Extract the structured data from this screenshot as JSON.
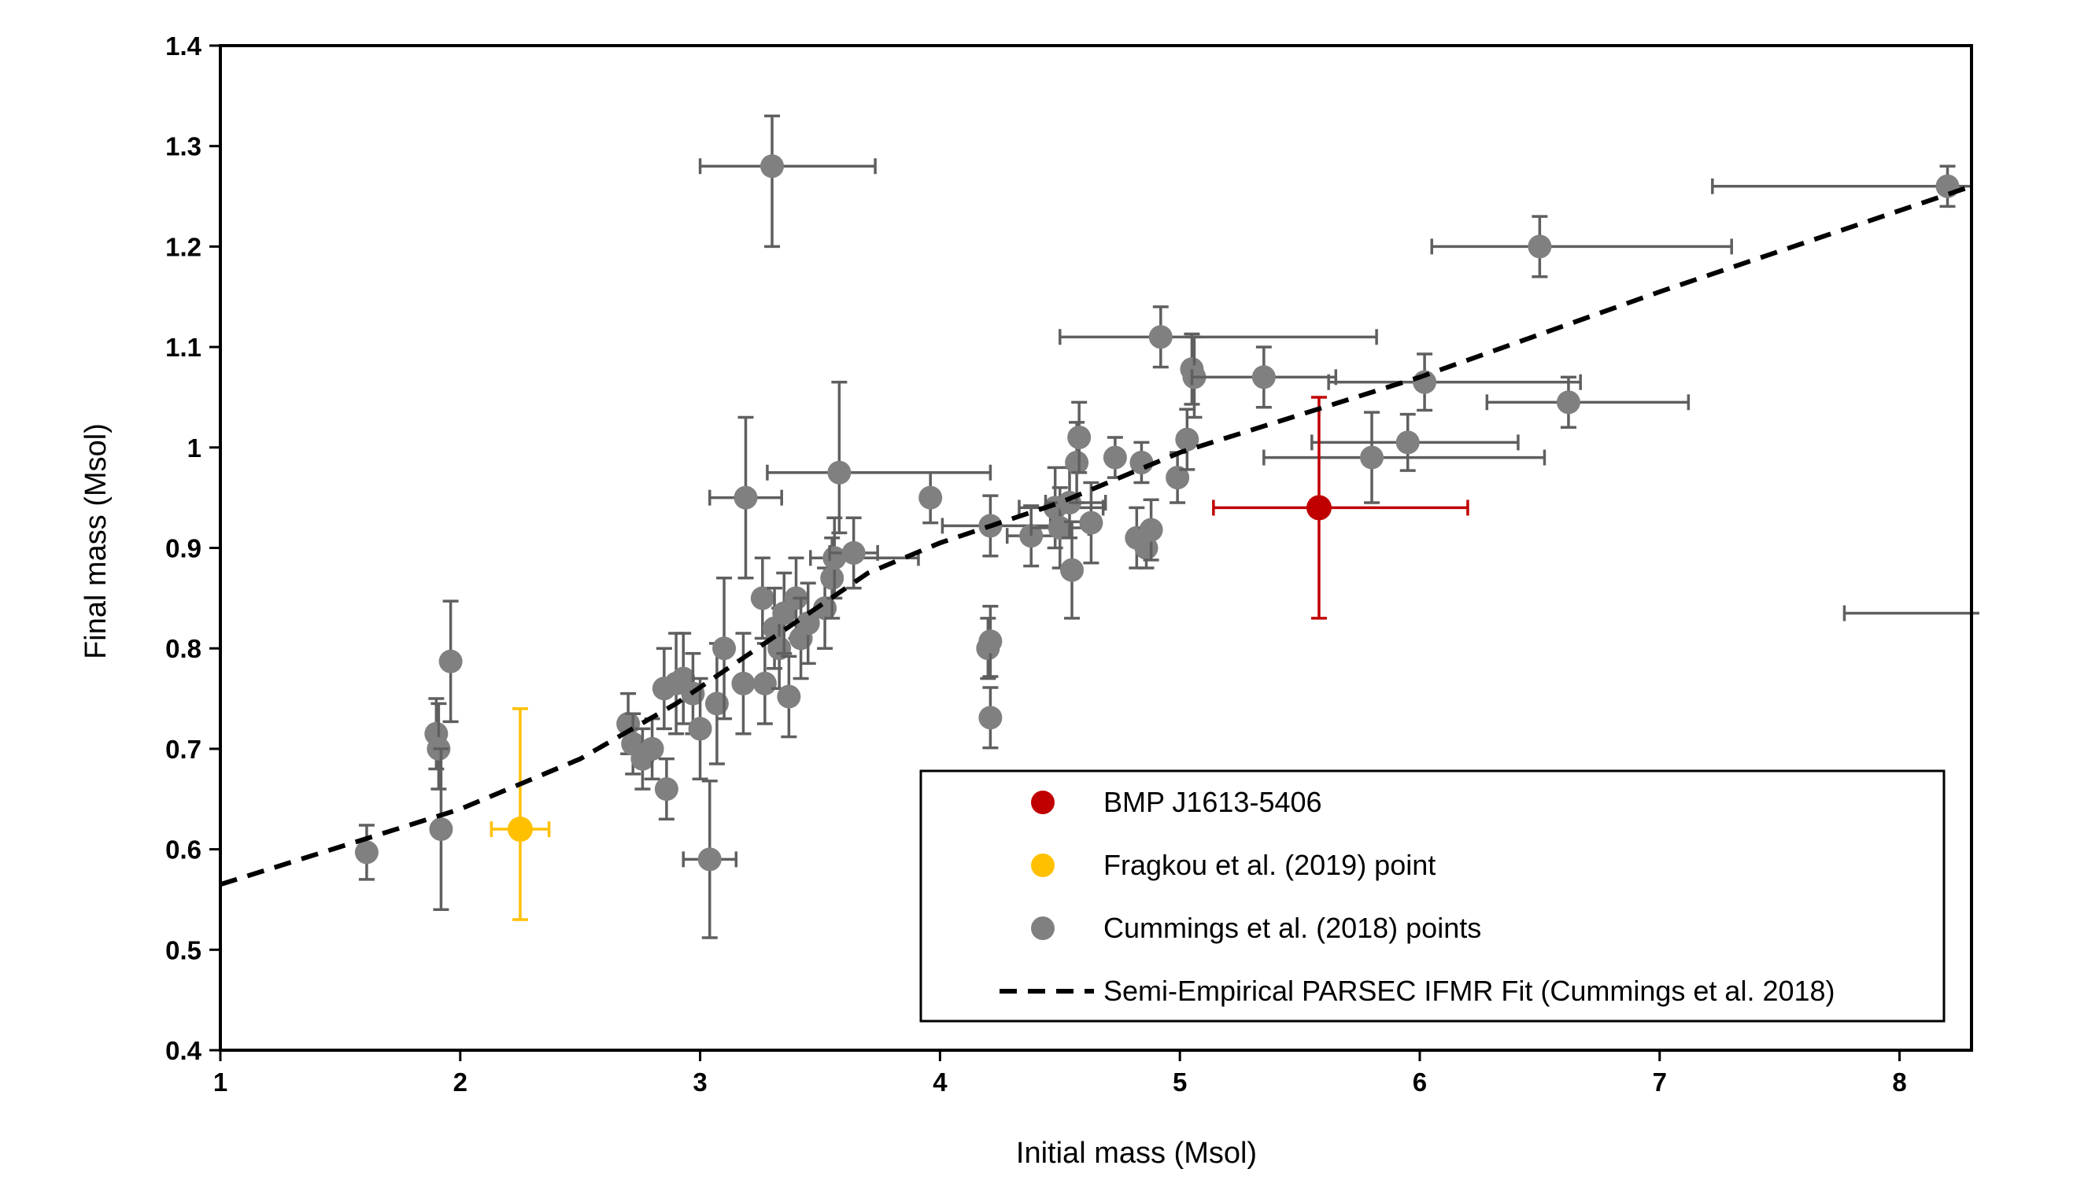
{
  "chart_data": {
    "type": "scatter",
    "xlabel": "Initial mass (Msol)",
    "ylabel": "Final mass (Msol)",
    "xlim": [
      1,
      8.3
    ],
    "ylim": [
      0.4,
      1.4
    ],
    "xticks": [
      "1",
      "2",
      "3",
      "4",
      "5",
      "6",
      "7",
      "8"
    ],
    "yticks": [
      "0.4",
      "0.5",
      "0.6",
      "0.7",
      "0.8",
      "0.9",
      "1",
      "1.1",
      "1.2",
      "1.3",
      "1.4"
    ],
    "legend_position": "bottom-right",
    "grid": false,
    "series": [
      {
        "name": "BMP J1613-5406",
        "kind": "points",
        "color": "#c00000",
        "points": [
          {
            "x": 5.58,
            "y": 0.94,
            "xerr": [
              0.44,
              0.62
            ],
            "yerr": [
              0.11,
              0.11
            ]
          }
        ]
      },
      {
        "name": "Fragkou et al. (2019) point",
        "kind": "points",
        "color": "#ffc000",
        "points": [
          {
            "x": 2.25,
            "y": 0.62,
            "xerr": [
              0.12,
              0.12
            ],
            "yerr": [
              0.09,
              0.12
            ]
          }
        ]
      },
      {
        "name": "Cummings et al. (2018) points",
        "kind": "points",
        "color": "#808080",
        "points": [
          {
            "x": 1.61,
            "y": 0.597,
            "yerr": [
              0.027,
              0.027
            ]
          },
          {
            "x": 1.9,
            "y": 0.715,
            "yerr": [
              0.035,
              0.035
            ]
          },
          {
            "x": 1.91,
            "y": 0.7,
            "yerr": [
              0.04,
              0.045
            ]
          },
          {
            "x": 1.92,
            "y": 0.62,
            "yerr": [
              0.08,
              0.08
            ]
          },
          {
            "x": 1.96,
            "y": 0.787,
            "yerr": [
              0.06,
              0.06
            ]
          },
          {
            "x": 3.3,
            "y": 1.28,
            "xerr": [
              0.3,
              0.43
            ],
            "yerr": [
              0.08,
              0.05
            ]
          },
          {
            "x": 3.04,
            "y": 0.59,
            "xerr": [
              0.11,
              0.11
            ],
            "yerr": [
              0.078,
              0.078
            ]
          },
          {
            "x": 3.19,
            "y": 0.95,
            "xerr": [
              0.15,
              0.15
            ],
            "yerr": [
              0.08,
              0.08
            ]
          },
          {
            "x": 3.58,
            "y": 0.975,
            "xerr": [
              0.3,
              0.63
            ],
            "yerr": [
              0.06,
              0.09
            ]
          },
          {
            "x": 2.7,
            "y": 0.725,
            "yerr": [
              0.03,
              0.03
            ]
          },
          {
            "x": 2.72,
            "y": 0.705,
            "yerr": [
              0.03,
              0.03
            ]
          },
          {
            "x": 2.76,
            "y": 0.69,
            "yerr": [
              0.03,
              0.03
            ]
          },
          {
            "x": 2.8,
            "y": 0.7,
            "yerr": [
              0.03,
              0.03
            ]
          },
          {
            "x": 2.86,
            "y": 0.66,
            "yerr": [
              0.03,
              0.03
            ]
          },
          {
            "x": 2.85,
            "y": 0.76,
            "yerr": [
              0.04,
              0.04
            ]
          },
          {
            "x": 2.9,
            "y": 0.765,
            "yerr": [
              0.05,
              0.05
            ]
          },
          {
            "x": 2.93,
            "y": 0.77,
            "yerr": [
              0.045,
              0.045
            ]
          },
          {
            "x": 2.97,
            "y": 0.755,
            "yerr": [
              0.04,
              0.04
            ]
          },
          {
            "x": 3.0,
            "y": 0.72,
            "yerr": [
              0.05,
              0.05
            ]
          },
          {
            "x": 3.07,
            "y": 0.745,
            "yerr": [
              0.06,
              0.06
            ]
          },
          {
            "x": 3.1,
            "y": 0.8,
            "yerr": [
              0.07,
              0.07
            ]
          },
          {
            "x": 3.18,
            "y": 0.765,
            "yerr": [
              0.05,
              0.05
            ]
          },
          {
            "x": 3.26,
            "y": 0.85,
            "yerr": [
              0.04,
              0.04
            ]
          },
          {
            "x": 3.27,
            "y": 0.765,
            "yerr": [
              0.04,
              0.04
            ]
          },
          {
            "x": 3.31,
            "y": 0.82,
            "yerr": [
              0.04,
              0.04
            ]
          },
          {
            "x": 3.33,
            "y": 0.8,
            "yerr": [
              0.04,
              0.04
            ]
          },
          {
            "x": 3.35,
            "y": 0.835,
            "yerr": [
              0.04,
              0.04
            ]
          },
          {
            "x": 3.37,
            "y": 0.752,
            "yerr": [
              0.04,
              0.04
            ]
          },
          {
            "x": 3.4,
            "y": 0.85,
            "yerr": [
              0.04,
              0.04
            ]
          },
          {
            "x": 3.42,
            "y": 0.81,
            "yerr": [
              0.04,
              0.04
            ]
          },
          {
            "x": 3.45,
            "y": 0.825,
            "yerr": [
              0.04,
              0.04
            ]
          },
          {
            "x": 3.52,
            "y": 0.84,
            "yerr": [
              0.04,
              0.04
            ]
          },
          {
            "x": 3.55,
            "y": 0.87,
            "yerr": [
              0.04,
              0.04
            ]
          },
          {
            "x": 3.56,
            "y": 0.89,
            "xerr": [
              0.1,
              0.35
            ],
            "yerr": [
              0.04,
              0.04
            ]
          },
          {
            "x": 3.64,
            "y": 0.895,
            "xerr": [
              0.1,
              0.1
            ],
            "yerr": [
              0.035,
              0.035
            ]
          },
          {
            "x": 3.96,
            "y": 0.95,
            "yerr": [
              0.025,
              0.025
            ]
          },
          {
            "x": 4.2,
            "y": 0.8,
            "yerr": [
              0.03,
              0.03
            ]
          },
          {
            "x": 4.21,
            "y": 0.807,
            "yerr": [
              0.035,
              0.035
            ]
          },
          {
            "x": 4.21,
            "y": 0.731,
            "yerr": [
              0.03,
              0.03
            ]
          },
          {
            "x": 4.21,
            "y": 0.922,
            "xerr": [
              0.2,
              0.25
            ],
            "yerr": [
              0.03,
              0.03
            ]
          },
          {
            "x": 4.38,
            "y": 0.912,
            "xerr": [
              0.1,
              0.1
            ],
            "yerr": [
              0.03,
              0.03
            ]
          },
          {
            "x": 4.48,
            "y": 0.94,
            "xerr": [
              0.15,
              0.2
            ],
            "yerr": [
              0.04,
              0.04
            ]
          },
          {
            "x": 4.5,
            "y": 0.92,
            "xerr": [
              0.12,
              0.12
            ],
            "yerr": [
              0.04,
              0.04
            ]
          },
          {
            "x": 4.54,
            "y": 0.945,
            "xerr": [
              0.1,
              0.15
            ],
            "yerr": [
              0.035,
              0.035
            ]
          },
          {
            "x": 4.55,
            "y": 0.878,
            "yerr": [
              0.048,
              0.048
            ]
          },
          {
            "x": 4.57,
            "y": 0.985,
            "yerr": [
              0.04,
              0.04
            ]
          },
          {
            "x": 4.58,
            "y": 1.01,
            "yerr": [
              0.035,
              0.035
            ]
          },
          {
            "x": 4.63,
            "y": 0.925,
            "yerr": [
              0.04,
              0.04
            ]
          },
          {
            "x": 4.73,
            "y": 0.99,
            "yerr": [
              0.02,
              0.02
            ]
          },
          {
            "x": 4.82,
            "y": 0.91,
            "yerr": [
              0.03,
              0.03
            ]
          },
          {
            "x": 4.84,
            "y": 0.985,
            "yerr": [
              0.02,
              0.02
            ]
          },
          {
            "x": 4.86,
            "y": 0.9,
            "yerr": [
              0.02,
              0.02
            ]
          },
          {
            "x": 4.88,
            "y": 0.918,
            "yerr": [
              0.03,
              0.03
            ]
          },
          {
            "x": 4.92,
            "y": 1.11,
            "xerr": [
              0.42,
              0.9
            ],
            "yerr": [
              0.03,
              0.03
            ]
          },
          {
            "x": 4.99,
            "y": 0.97,
            "yerr": [
              0.025,
              0.025
            ]
          },
          {
            "x": 5.03,
            "y": 1.008,
            "yerr": [
              0.03,
              0.03
            ]
          },
          {
            "x": 5.05,
            "y": 1.078,
            "yerr": [
              0.035,
              0.035
            ]
          },
          {
            "x": 5.06,
            "y": 1.07,
            "yerr": [
              0.04,
              0.04
            ]
          },
          {
            "x": 5.35,
            "y": 1.07,
            "xerr": [
              0.3,
              0.3
            ],
            "yerr": [
              0.03,
              0.03
            ]
          },
          {
            "x": 5.8,
            "y": 0.99,
            "xerr": [
              0.45,
              0.72
            ],
            "yerr": [
              0.045,
              0.045
            ]
          },
          {
            "x": 5.95,
            "y": 1.005,
            "xerr": [
              0.4,
              0.46
            ],
            "yerr": [
              0.028,
              0.028
            ]
          },
          {
            "x": 6.02,
            "y": 1.065,
            "xerr": [
              0.4,
              0.65
            ],
            "yerr": [
              0.028,
              0.028
            ]
          },
          {
            "x": 6.5,
            "y": 1.2,
            "xerr": [
              0.45,
              0.8
            ],
            "yerr": [
              0.03,
              0.03
            ]
          },
          {
            "x": 6.62,
            "y": 1.045,
            "xerr": [
              0.34,
              0.5
            ],
            "yerr": [
              0.025,
              0.025
            ]
          },
          {
            "x": 8.2,
            "y": 1.26,
            "xerr": [
              0.98,
              0.1
            ],
            "yerr": [
              0.02,
              0.02
            ]
          },
          {
            "x": 8.6,
            "y": 0.835,
            "xerr": [
              0.83,
              0.1
            ],
            "yerr": [
              0,
              0
            ]
          }
        ]
      },
      {
        "name": "Semi-Empirical PARSEC IFMR Fit (Cummings et al. 2018)",
        "kind": "line",
        "style": "dashed",
        "color": "#000000",
        "points": [
          {
            "x": 1.0,
            "y": 0.565
          },
          {
            "x": 2.0,
            "y": 0.64
          },
          {
            "x": 2.5,
            "y": 0.69
          },
          {
            "x": 2.9,
            "y": 0.745
          },
          {
            "x": 3.3,
            "y": 0.81
          },
          {
            "x": 3.7,
            "y": 0.875
          },
          {
            "x": 4.0,
            "y": 0.905
          },
          {
            "x": 4.5,
            "y": 0.945
          },
          {
            "x": 5.0,
            "y": 0.995
          },
          {
            "x": 6.0,
            "y": 1.07
          },
          {
            "x": 7.0,
            "y": 1.155
          },
          {
            "x": 8.3,
            "y": 1.26
          }
        ]
      }
    ]
  }
}
